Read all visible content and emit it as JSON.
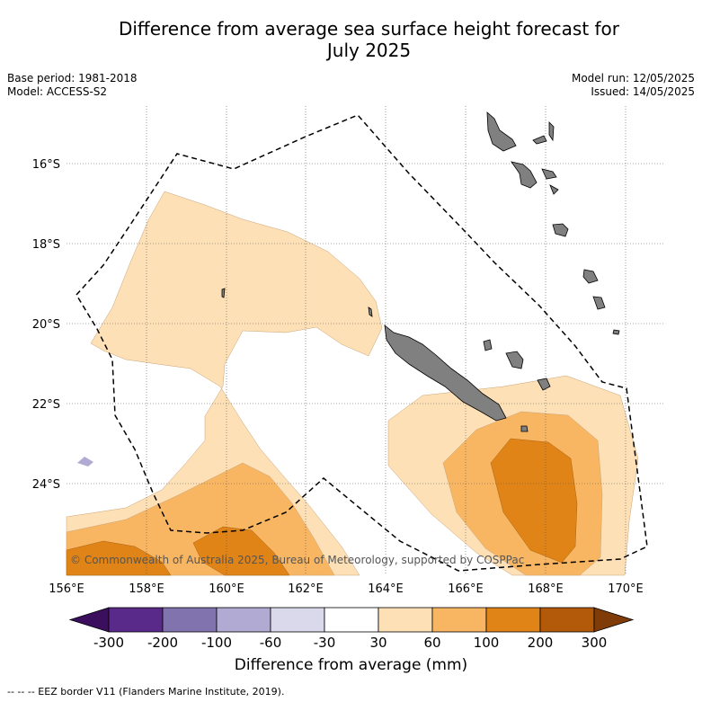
{
  "title_line1": "Difference from average sea surface height forecast for",
  "title_line2": "July 2025",
  "base_period": "Base period: 1981-2018",
  "model": "Model: ACCESS-S2",
  "model_run": "Model run: 12/05/2025",
  "issued": "Issued: 14/05/2025",
  "copyright": "© Commonwealth of Australia 2025, Bureau of Meteorology, supported by COSPPac",
  "lon_labels": [
    "156°E",
    "158°E",
    "160°E",
    "162°E",
    "164°E",
    "166°E",
    "168°E",
    "170°E"
  ],
  "lat_labels": [
    "16°S",
    "18°S",
    "20°S",
    "22°S",
    "24°S"
  ],
  "colorbar": {
    "tick_labels": [
      "-300",
      "-200",
      "-100",
      "-60",
      "-30",
      "30",
      "60",
      "100",
      "200",
      "300"
    ],
    "colors": [
      "#3b0f5e",
      "#5a2a8a",
      "#8173ad",
      "#b1aad2",
      "#d9d9eb",
      "#ffffff",
      "#fde0b6",
      "#f9b662",
      "#e08418",
      "#b35a0a",
      "#7f3b08"
    ],
    "title": "Difference from average (mm)"
  },
  "footer": "--  --  -- EEZ border V11 (Flanders Marine Institute, 2019)."
}
